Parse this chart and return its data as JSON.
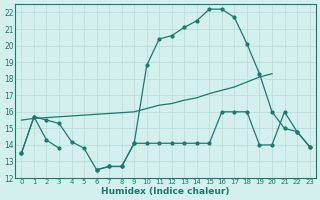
{
  "xlabel": "Humidex (Indice chaleur)",
  "x_all": [
    0,
    1,
    2,
    3,
    4,
    5,
    6,
    7,
    8,
    9,
    10,
    11,
    12,
    13,
    14,
    15,
    16,
    17,
    18,
    19,
    20,
    21,
    22,
    23
  ],
  "curve_peak": [
    13.5,
    15.7,
    15.5,
    15.3,
    14.2,
    13.8,
    12.5,
    12.7,
    12.7,
    14.1,
    18.8,
    20.4,
    20.6,
    21.1,
    21.5,
    22.2,
    22.2,
    21.7,
    20.1,
    18.3,
    16.0,
    15.0,
    14.8,
    13.9
  ],
  "curve_diag": [
    15.5,
    15.6,
    15.65,
    15.7,
    15.75,
    15.8,
    15.85,
    15.9,
    15.95,
    16.0,
    16.2,
    16.4,
    16.5,
    16.7,
    16.85,
    17.1,
    17.3,
    17.5,
    17.8,
    18.1,
    18.3,
    null,
    null,
    null
  ],
  "curve_flat_x": [
    0,
    1,
    2,
    3,
    4,
    5,
    6,
    7,
    8,
    9,
    10,
    11,
    12,
    13,
    14,
    15,
    16,
    17,
    18,
    19,
    20,
    21,
    22,
    23
  ],
  "curve_flat": [
    13.5,
    15.7,
    14.3,
    13.8,
    null,
    null,
    12.5,
    12.7,
    12.7,
    14.1,
    14.1,
    14.1,
    14.1,
    14.1,
    14.1,
    14.1,
    16.0,
    16.0,
    16.0,
    14.0,
    14.0,
    16.0,
    14.8,
    13.9
  ],
  "color": "#1a7a6e",
  "bg_color": "#d4f0ee",
  "grid_color": "#b8d8d6",
  "ylim": [
    12,
    22.5
  ],
  "xlim": [
    -0.5,
    23.5
  ]
}
